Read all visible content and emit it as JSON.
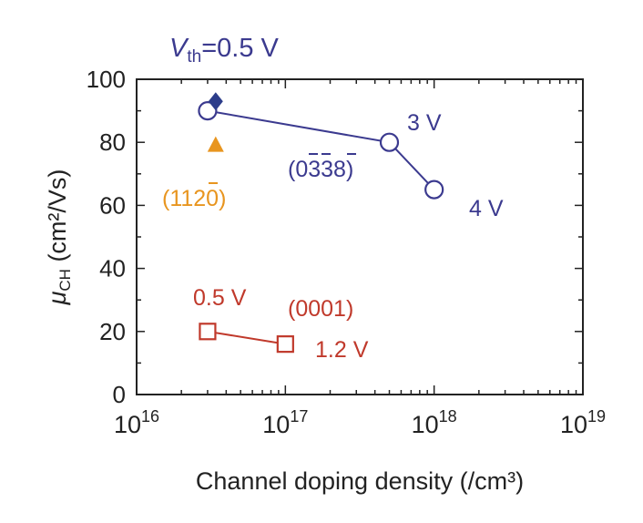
{
  "chart_data": {
    "type": "scatter",
    "xscale": "log",
    "xlim": [
      1e+16,
      1e+19
    ],
    "ylim": [
      0,
      100
    ],
    "xlabel": "Channel doping density (/cm³)",
    "ylabel_prefix": "μ",
    "ylabel_sub": "CH",
    "ylabel_suffix": " (cm²/Vs)",
    "yticks": [
      0,
      20,
      40,
      60,
      80,
      100
    ],
    "yticklabels": [
      "0",
      "20",
      "40",
      "60",
      "80",
      "100"
    ],
    "xticks": [
      1e+16,
      1e+17,
      1e+18,
      1e+19
    ],
    "xtick_base": "10",
    "xtick_exps": [
      "16",
      "17",
      "18",
      "19"
    ],
    "grid": false,
    "colors": {
      "blue": "#3b3a8f",
      "blue_fill": "#2c3d8a",
      "orange": "#e8951f",
      "red": "#c0392b",
      "axis": "#222222"
    },
    "header_label": {
      "v": "V",
      "sub": "th",
      "rest": "=0.5 V"
    },
    "series": [
      {
        "name": "(0338)",
        "label_text": "(0338)",
        "marker": "circle-open",
        "color": "blue",
        "points": [
          [
            3e+16,
            90
          ],
          [
            5e+17,
            80
          ],
          [
            1e+18,
            65
          ]
        ],
        "point_labels": [
          "",
          "3 V",
          "4 V"
        ]
      },
      {
        "name": "(1120)",
        "label_text": "(1120)",
        "marker": "triangle-filled",
        "color": "orange",
        "points": [
          [
            3.4e+16,
            79
          ]
        ]
      },
      {
        "name": "",
        "marker": "diamond-filled",
        "color": "blue_fill",
        "points": [
          [
            3.4e+16,
            93
          ]
        ]
      },
      {
        "name": "(0001)",
        "label_text": "(0001)",
        "marker": "square-open",
        "color": "red",
        "points": [
          [
            3e+16,
            20
          ],
          [
            1e+17,
            16
          ]
        ],
        "point_labels": [
          "0.5 V",
          "1.2 V"
        ]
      }
    ]
  }
}
